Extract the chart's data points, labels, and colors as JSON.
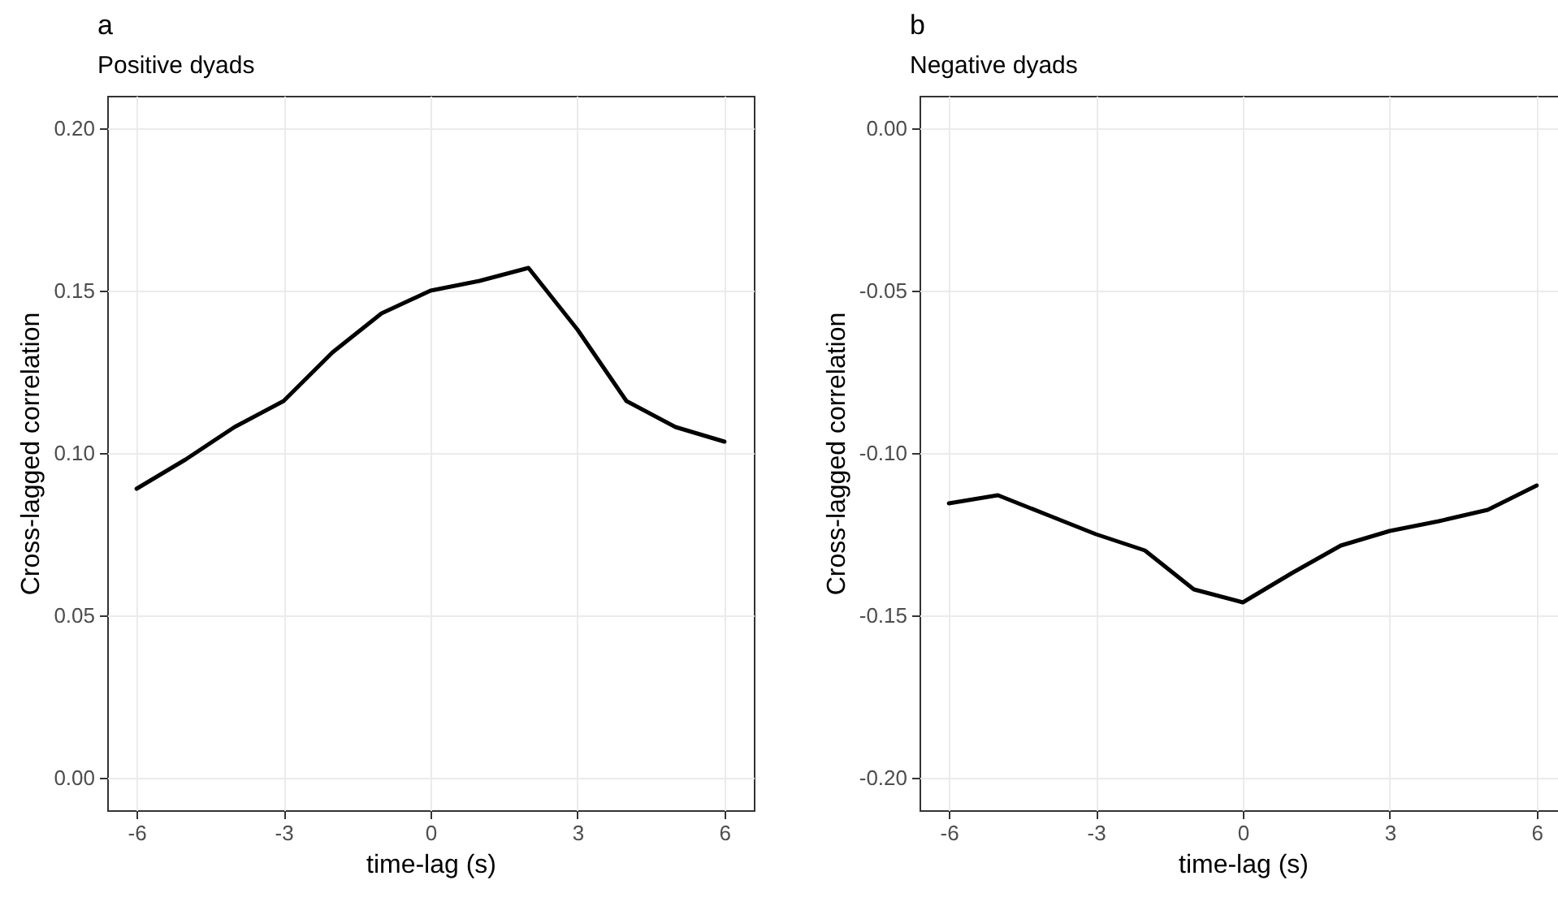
{
  "chart_data": [
    {
      "type": "line",
      "title": "a",
      "subtitle": "Positive dyads",
      "xlabel": "time-lag (s)",
      "ylabel": "Cross-lagged correlation",
      "x": [
        -6,
        -5,
        -4,
        -3,
        -2,
        -1,
        0,
        1,
        2,
        3,
        4,
        5,
        6
      ],
      "series": [
        {
          "color": "#000000",
          "values": [
            0.089,
            0.098,
            0.108,
            0.116,
            0.131,
            0.143,
            0.15,
            0.153,
            0.157,
            0.138,
            0.116,
            0.108,
            0.1035
          ]
        }
      ],
      "xlim": [
        -6.6,
        6.6
      ],
      "xticks": [
        -6,
        -3,
        0,
        3,
        6
      ],
      "ylim": [
        -0.01,
        0.21
      ],
      "yticks": [
        {
          "value": 0,
          "label": "0.00"
        },
        0.05,
        {
          "value": 0.1,
          "label": "0.10"
        },
        0.15,
        {
          "value": 0.2,
          "label": "0.20"
        }
      ],
      "grid": true,
      "legend": false,
      "line_style": "solid"
    },
    {
      "type": "line",
      "title": "b",
      "subtitle": "Negative dyads",
      "xlabel": "time-lag (s)",
      "ylabel": "Cross-lagged correlation",
      "x": [
        -6,
        -5,
        -4,
        -3,
        -2,
        -1,
        0,
        1,
        2,
        3,
        4,
        5,
        6
      ],
      "series": [
        {
          "color": "#000000",
          "values": [
            -0.1155,
            -0.113,
            -0.119,
            -0.125,
            -0.13,
            -0.142,
            -0.146,
            -0.137,
            -0.1285,
            -0.124,
            -0.121,
            -0.1175,
            -0.11
          ]
        }
      ],
      "xlim": [
        -6.6,
        6.6
      ],
      "xticks": [
        -6,
        -3,
        0,
        3,
        6
      ],
      "ylim": [
        -0.21,
        0.01
      ],
      "yticks": [
        {
          "value": 0,
          "label": "0.00"
        },
        -0.05,
        {
          "value": -0.1,
          "label": "-0.10"
        },
        -0.15,
        {
          "value": -0.2,
          "label": "-0.20"
        }
      ],
      "grid": true,
      "legend": false,
      "line_style": "solid"
    }
  ]
}
